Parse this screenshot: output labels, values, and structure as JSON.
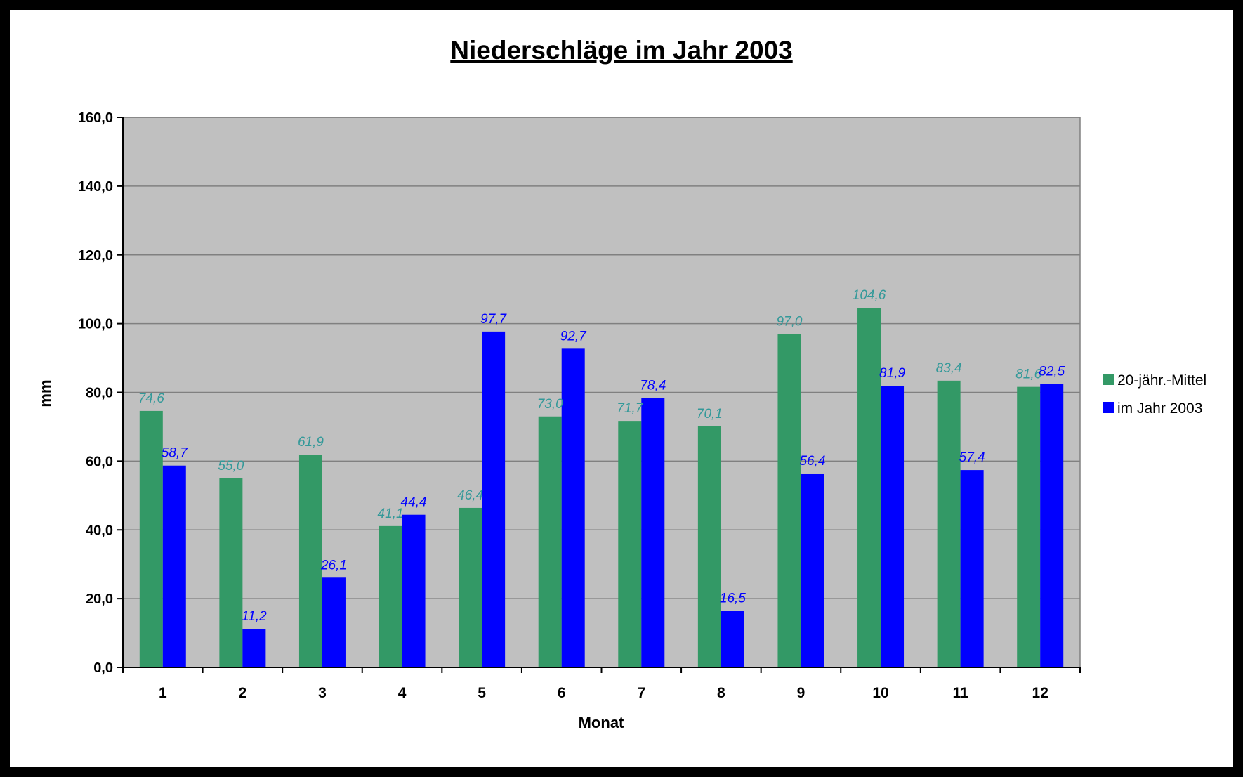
{
  "chart_data": {
    "type": "bar",
    "title": "Niederschläge im Jahr 2003",
    "xlabel": "Monat",
    "ylabel": "mm",
    "ylim": [
      0,
      160
    ],
    "yticks": [
      "0,0",
      "20,0",
      "40,0",
      "60,0",
      "80,0",
      "100,0",
      "120,0",
      "140,0",
      "160,0"
    ],
    "categories": [
      "1",
      "2",
      "3",
      "4",
      "5",
      "6",
      "7",
      "8",
      "9",
      "10",
      "11",
      "12"
    ],
    "series": [
      {
        "name": "20-jähr.-Mittel",
        "color": "#339966",
        "label_color": "#339999",
        "values": [
          74.6,
          55.0,
          61.9,
          41.1,
          46.4,
          73.0,
          71.7,
          70.1,
          97.0,
          104.6,
          83.4,
          81.6
        ],
        "labels": [
          "74,6",
          "55,0",
          "61,9",
          "41,1",
          "46,4",
          "73,0",
          "71,7",
          "70,1",
          "97,0",
          "104,6",
          "83,4",
          "81,6"
        ]
      },
      {
        "name": "im Jahr 2003",
        "color": "#0000ff",
        "label_color": "#0000ff",
        "values": [
          58.7,
          11.2,
          26.1,
          44.4,
          97.7,
          92.7,
          78.4,
          16.5,
          56.4,
          81.9,
          57.4,
          82.5
        ],
        "labels": [
          "58,7",
          "11,2",
          "26,1",
          "44,4",
          "97,7",
          "92,7",
          "78,4",
          "16,5",
          "56,4",
          "81,9",
          "57,4",
          "82,5"
        ]
      }
    ],
    "grid": true,
    "legend_position": "right",
    "plot_background": "#c0c0c0"
  }
}
